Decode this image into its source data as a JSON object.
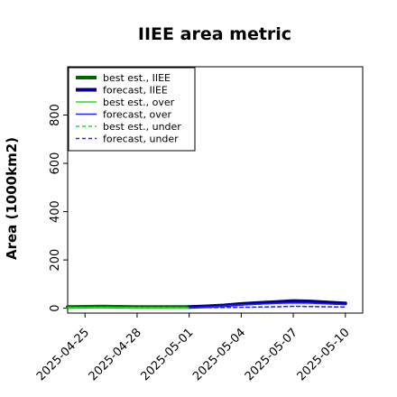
{
  "chart_data": {
    "type": "line",
    "title": "IIEE area metric",
    "xlabel": "",
    "ylabel": "Area (1000km2)",
    "ylim": [
      -20,
      1000
    ],
    "yticks": [
      0,
      200,
      400,
      600,
      800
    ],
    "xlim": [
      "2025-04-24",
      "2025-05-11"
    ],
    "xticks": [
      {
        "label": "2025-04-25",
        "date": "2025-04-25",
        "color": "#000000"
      },
      {
        "label": "2025-04-28",
        "date": "2025-04-28",
        "color": "#000000"
      },
      {
        "label": "2025-05-01",
        "date": "2025-05-01",
        "color": "#2e8b2e"
      },
      {
        "label": "2025-05-04",
        "date": "2025-05-04",
        "color": "#000000"
      },
      {
        "label": "2025-05-07",
        "date": "2025-05-07",
        "color": "#000000"
      },
      {
        "label": "2025-05-10",
        "date": "2025-05-10",
        "color": "#000000"
      }
    ],
    "grid": false,
    "legend_position": "top-left",
    "series": [
      {
        "name": "best est., IIEE",
        "color": "#006400",
        "dash": "solid",
        "width": 4,
        "x": [
          "2025-04-24",
          "2025-04-25",
          "2025-04-26",
          "2025-04-27",
          "2025-04-28",
          "2025-04-29",
          "2025-04-30",
          "2025-05-01"
        ],
        "y": [
          5,
          6,
          7,
          6,
          5,
          5,
          5,
          5
        ]
      },
      {
        "name": "forecast, IIEE",
        "color": "#00008b",
        "dash": "solid",
        "width": 4,
        "x": [
          "2025-05-01",
          "2025-05-02",
          "2025-05-03",
          "2025-05-04",
          "2025-05-05",
          "2025-05-06",
          "2025-05-07",
          "2025-05-08",
          "2025-05-09",
          "2025-05-10"
        ],
        "y": [
          5,
          8,
          12,
          18,
          22,
          26,
          30,
          28,
          24,
          20
        ]
      },
      {
        "name": "best est., over",
        "color": "#22dd22",
        "dash": "solid",
        "width": 1.5,
        "x": [
          "2025-04-24",
          "2025-04-25",
          "2025-04-26",
          "2025-04-27",
          "2025-04-28",
          "2025-04-29",
          "2025-04-30",
          "2025-05-01"
        ],
        "y": [
          2,
          3,
          3,
          3,
          2,
          2,
          2,
          2
        ]
      },
      {
        "name": "forecast, over",
        "color": "#2222ff",
        "dash": "solid",
        "width": 1.5,
        "x": [
          "2025-05-01",
          "2025-05-02",
          "2025-05-03",
          "2025-05-04",
          "2025-05-05",
          "2025-05-06",
          "2025-05-07",
          "2025-05-08",
          "2025-05-09",
          "2025-05-10"
        ],
        "y": [
          2,
          5,
          9,
          14,
          17,
          20,
          22,
          21,
          18,
          15
        ]
      },
      {
        "name": "best est., under",
        "color": "#22dd22",
        "dash": "dashed",
        "width": 1.5,
        "x": [
          "2025-04-24",
          "2025-04-25",
          "2025-04-26",
          "2025-04-27",
          "2025-04-28",
          "2025-04-29",
          "2025-04-30",
          "2025-05-01"
        ],
        "y": [
          3,
          3,
          4,
          3,
          3,
          3,
          3,
          3
        ]
      },
      {
        "name": "forecast, under",
        "color": "#2222ff",
        "dash": "dashed",
        "width": 1.5,
        "x": [
          "2025-05-01",
          "2025-05-02",
          "2025-05-03",
          "2025-05-04",
          "2025-05-05",
          "2025-05-06",
          "2025-05-07",
          "2025-05-08",
          "2025-05-09",
          "2025-05-10"
        ],
        "y": [
          3,
          3,
          3,
          4,
          5,
          6,
          8,
          7,
          6,
          5
        ]
      }
    ]
  }
}
